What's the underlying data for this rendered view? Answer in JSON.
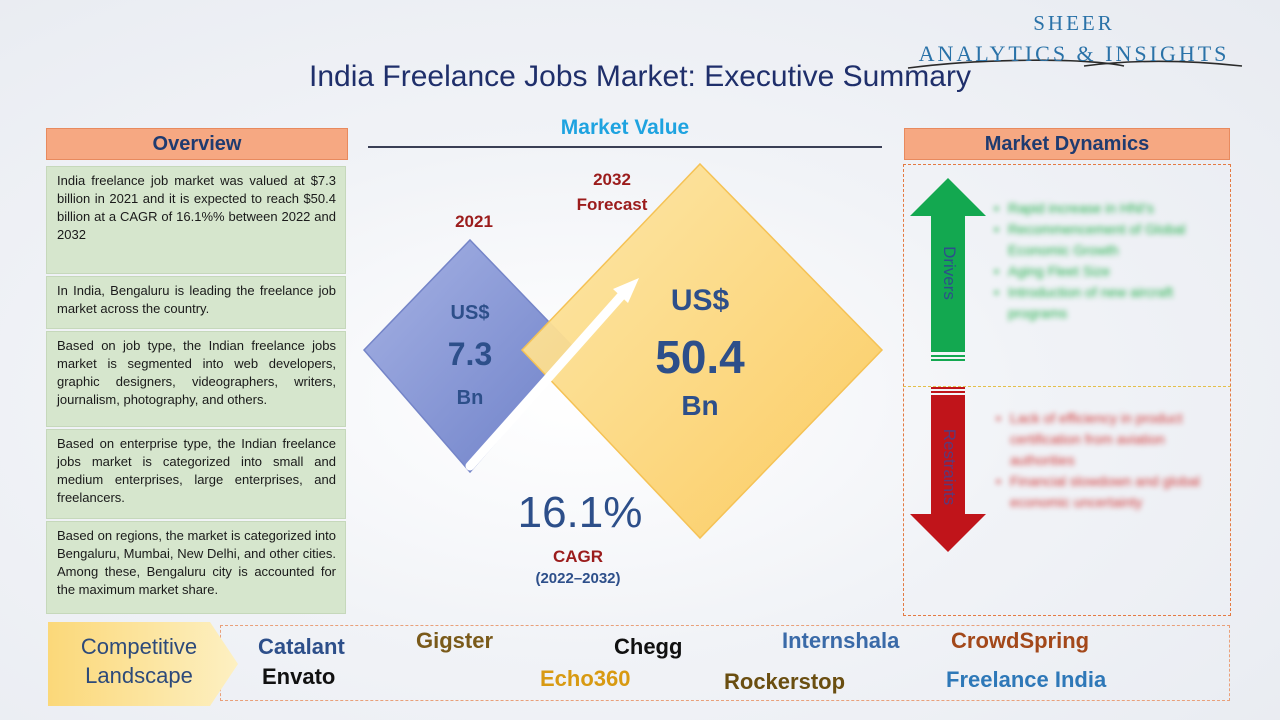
{
  "logo": {
    "line1": "SHEER",
    "line2": "ANALYTICS & INSIGHTS"
  },
  "title": "India Freelance Jobs Market: Executive Summary",
  "overview": {
    "header": "Overview",
    "paragraphs": [
      "India freelance job market was valued at $7.3 billion in 2021 and it is expected to reach $50.4 billion at a CAGR of 16.1%% between 2022 and 2032",
      "In India, Bengaluru is leading the freelance job market across the country.",
      "Based on job type, the Indian freelance jobs market is segmented into web developers, graphic designers, videographers, writers, journalism, photography, and others.",
      "Based on enterprise type, the Indian freelance jobs market is categorized into small and medium enterprises, large enterprises, and freelancers.",
      "Based on regions, the market is categorized into Bengaluru, Mumbai, New Delhi, and other cities. Among these, Bengaluru city is accounted for the maximum market share."
    ]
  },
  "market_value": {
    "header": "Market Value",
    "year_2021": "2021",
    "currency_2021": "US$",
    "value_2021": "7.3",
    "unit_2021": "Bn",
    "year_2032": "2032",
    "forecast_label": "Forecast",
    "currency_2032": "US$",
    "value_2032": "50.4",
    "unit_2032": "Bn",
    "cagr_value": "16.1%",
    "cagr_label": "CAGR",
    "cagr_period": "(2022–2032)"
  },
  "market_dynamics": {
    "header": "Market Dynamics",
    "drivers_label": "Drivers",
    "restraints_label": "Restraints",
    "drivers": [
      "Rapid increase in HNI's",
      "Recommencement of Global Economic Growth",
      "Aging Fleet Size",
      "Introduction of new aircraft programs"
    ],
    "restraints": [
      "Lack of efficiency in product certification from aviation authorities",
      "Financial slowdown and global economic uncertainty"
    ]
  },
  "competitive_landscape": {
    "label_line1": "Competitive",
    "label_line2": "Landscape",
    "companies": [
      {
        "name": "Catalant",
        "color": "#2d4f8a"
      },
      {
        "name": "Envato",
        "color": "#111111"
      },
      {
        "name": "Gigster",
        "color": "#7a5a1a"
      },
      {
        "name": "Echo360",
        "color": "#d89a12"
      },
      {
        "name": "Chegg",
        "color": "#111111"
      },
      {
        "name": "Internshala",
        "color": "#3a6aa8"
      },
      {
        "name": "Rockerstop",
        "color": "#6a4e10"
      },
      {
        "name": "CrowdSpring",
        "color": "#a3481a"
      },
      {
        "name": "Freelance India",
        "color": "#2e78b8"
      }
    ]
  },
  "colors": {
    "header_fill": "#f6a882",
    "overview_fill": "#d6e6cd",
    "diamond_2021": "#8797d4",
    "diamond_2032": "#fcd57e",
    "drivers_arrow": "#13a850",
    "restraints_arrow": "#c0141a"
  }
}
